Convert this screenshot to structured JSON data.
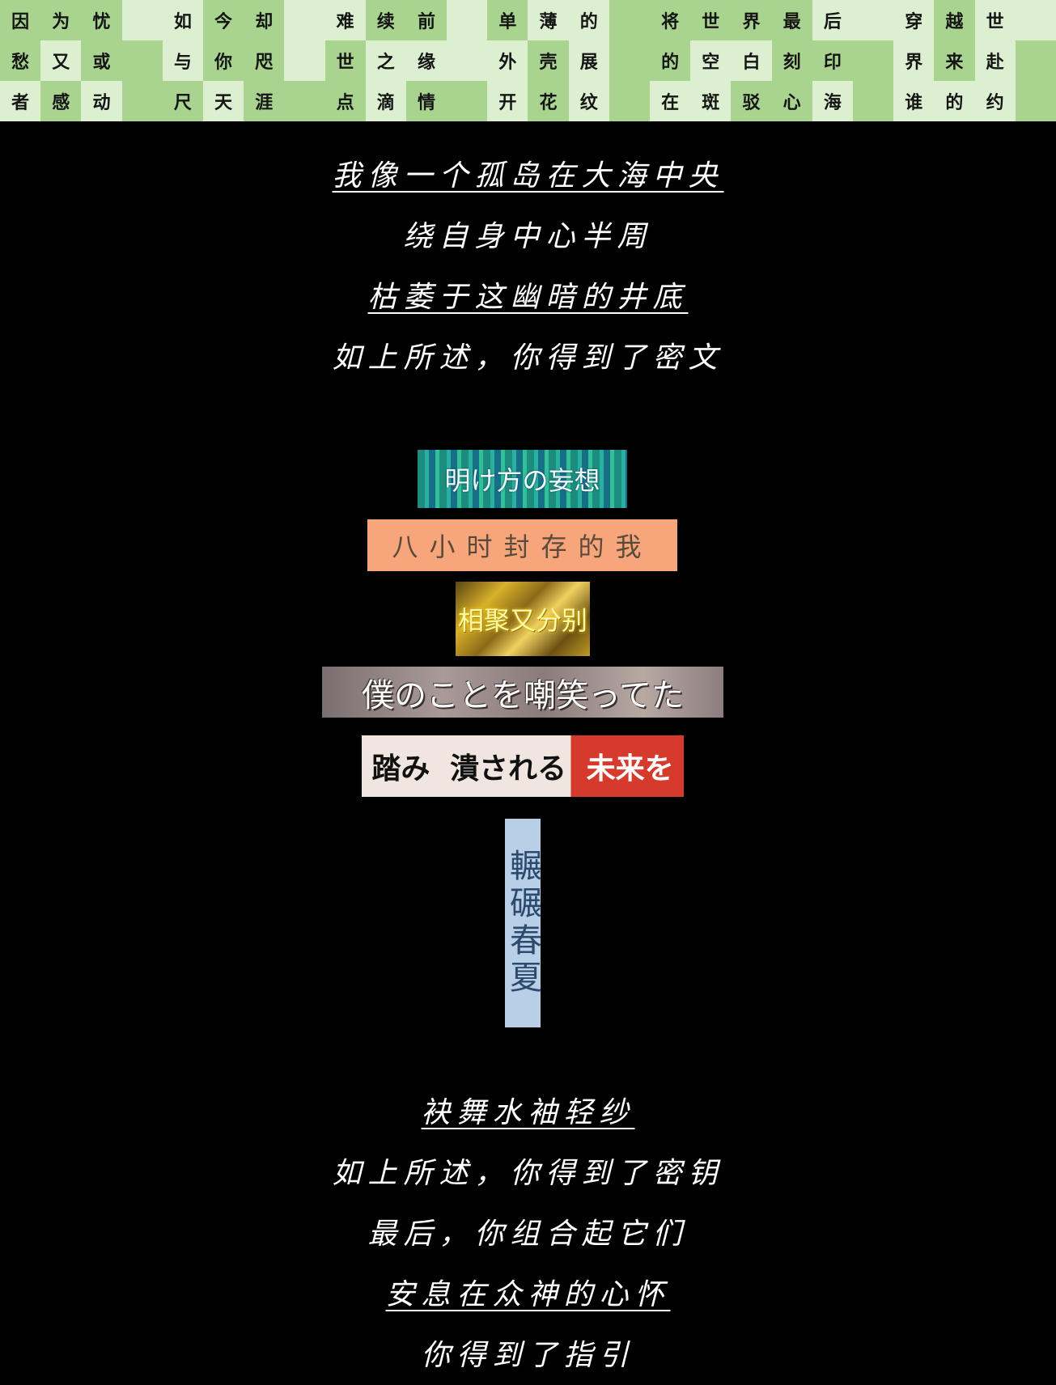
{
  "grid": {
    "rows": [
      [
        "因",
        "为",
        "忧",
        "",
        "如",
        "今",
        "却",
        "",
        "难",
        "续",
        "前",
        "",
        "单",
        "薄",
        "的",
        "",
        "将",
        "世",
        "界",
        "最",
        "后",
        "",
        "穿",
        "越",
        "世",
        ""
      ],
      [
        "愁",
        "又",
        "或",
        "",
        "与",
        "你",
        "咫",
        "",
        "世",
        "之",
        "缘",
        "",
        "外",
        "壳",
        "展",
        "",
        "的",
        "空",
        "白",
        "刻",
        "印",
        "",
        "界",
        "来",
        "赴",
        ""
      ],
      [
        "者",
        "感",
        "动",
        "",
        "尺",
        "天",
        "涯",
        "",
        "点",
        "滴",
        "情",
        "",
        "开",
        "花",
        "纹",
        "",
        "在",
        "斑",
        "驳",
        "心",
        "海",
        "",
        "谁",
        "的",
        "约",
        ""
      ]
    ]
  },
  "poem1": {
    "line1": "我像一个孤岛在大海中央",
    "line2": "绕自身中心半周",
    "line3": "枯萎于这幽暗的井底",
    "line4": "如上所述，你得到了密文"
  },
  "cards": {
    "card1": "明け方の妄想",
    "card2": "八小时封存的我",
    "card3": "相聚又分别",
    "card4": "僕のことを嘲笑ってた",
    "card5_a": "踏み",
    "card5_b": "潰される",
    "card5_c": "未来を",
    "card6": "輾碾春夏"
  },
  "poem2": {
    "line1": "袂舞水袖轻纱",
    "line2": "如上所述，你得到了密钥",
    "line3": "最后，你组合起它们",
    "line4": "安息在众神的心怀",
    "line5": "你得到了指引"
  },
  "colors": {
    "background": "#000000",
    "grid_dark": "#a8d48f",
    "grid_light": "#dcefd1",
    "text": "#ffffff"
  }
}
